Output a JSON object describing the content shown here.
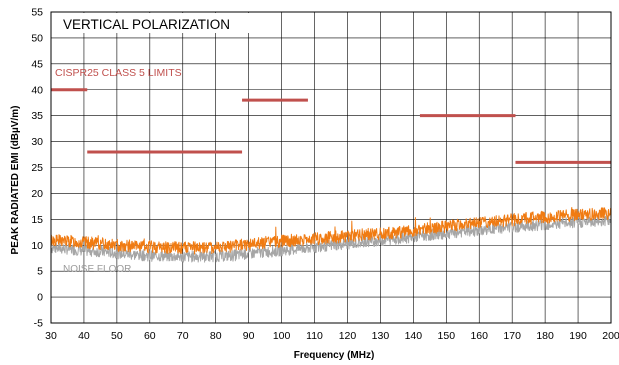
{
  "chart_data": {
    "type": "line",
    "title": "VERTICAL POLARIZATION",
    "xlabel": "Frequency (MHz)",
    "ylabel": "PEAK RADIATED EMI (dBµV/m)",
    "xlim": [
      30,
      200
    ],
    "ylim": [
      -5,
      55
    ],
    "x_ticks": [
      30,
      40,
      50,
      60,
      70,
      80,
      90,
      100,
      110,
      120,
      130,
      140,
      150,
      160,
      170,
      180,
      190,
      200
    ],
    "y_ticks": [
      -5,
      0,
      5,
      10,
      15,
      20,
      25,
      30,
      35,
      40,
      45,
      50,
      55
    ],
    "grid": true,
    "colors": {
      "emi": "#f07b12",
      "noise": "#a6a6a6",
      "limits": "#c0504d"
    },
    "annotations": {
      "limits_label": "CISPR25 CLASS 5 LIMITS",
      "noise_label": "NOISE FLOOR"
    },
    "limits": [
      {
        "x": [
          30,
          41
        ],
        "y": 40
      },
      {
        "x": [
          41,
          88
        ],
        "y": 28
      },
      {
        "x": [
          88,
          108
        ],
        "y": 38
      },
      {
        "x": [
          142,
          171
        ],
        "y": 35
      },
      {
        "x": [
          171,
          200
        ],
        "y": 26
      }
    ],
    "series": [
      {
        "x": [
          30,
          35,
          40,
          45,
          50,
          55,
          60,
          65,
          70,
          75,
          80,
          85,
          90,
          95,
          100,
          105,
          110,
          115,
          120,
          125,
          130,
          135,
          140,
          145,
          150,
          155,
          160,
          165,
          170,
          175,
          180,
          185,
          190,
          195,
          200
        ],
        "values": [
          11,
          10.8,
          10.5,
          10.3,
          10,
          9.8,
          9.7,
          9.6,
          9.5,
          9.5,
          9.6,
          9.8,
          10.2,
          10.5,
          10.8,
          11,
          11.2,
          11.5,
          11.8,
          12,
          12.2,
          12.5,
          12.8,
          13.2,
          13.6,
          14,
          14.3,
          14.6,
          14.9,
          15.2,
          15.4,
          15.6,
          15.8,
          16,
          16.2
        ]
      },
      {
        "x": [
          30,
          35,
          40,
          45,
          50,
          55,
          60,
          65,
          70,
          75,
          80,
          85,
          90,
          95,
          100,
          105,
          110,
          115,
          120,
          125,
          130,
          135,
          140,
          145,
          150,
          155,
          160,
          165,
          170,
          175,
          180,
          185,
          190,
          195,
          200
        ],
        "values": [
          9.5,
          9.3,
          9,
          8.8,
          8.5,
          8.2,
          8,
          7.9,
          7.8,
          7.8,
          7.9,
          8,
          8.4,
          8.7,
          9,
          9.3,
          9.6,
          10,
          10.3,
          10.6,
          11,
          11.3,
          11.6,
          12,
          12.3,
          12.6,
          12.9,
          13.2,
          13.5,
          13.8,
          14,
          14.2,
          14.4,
          14.6,
          14.8
        ]
      }
    ]
  }
}
